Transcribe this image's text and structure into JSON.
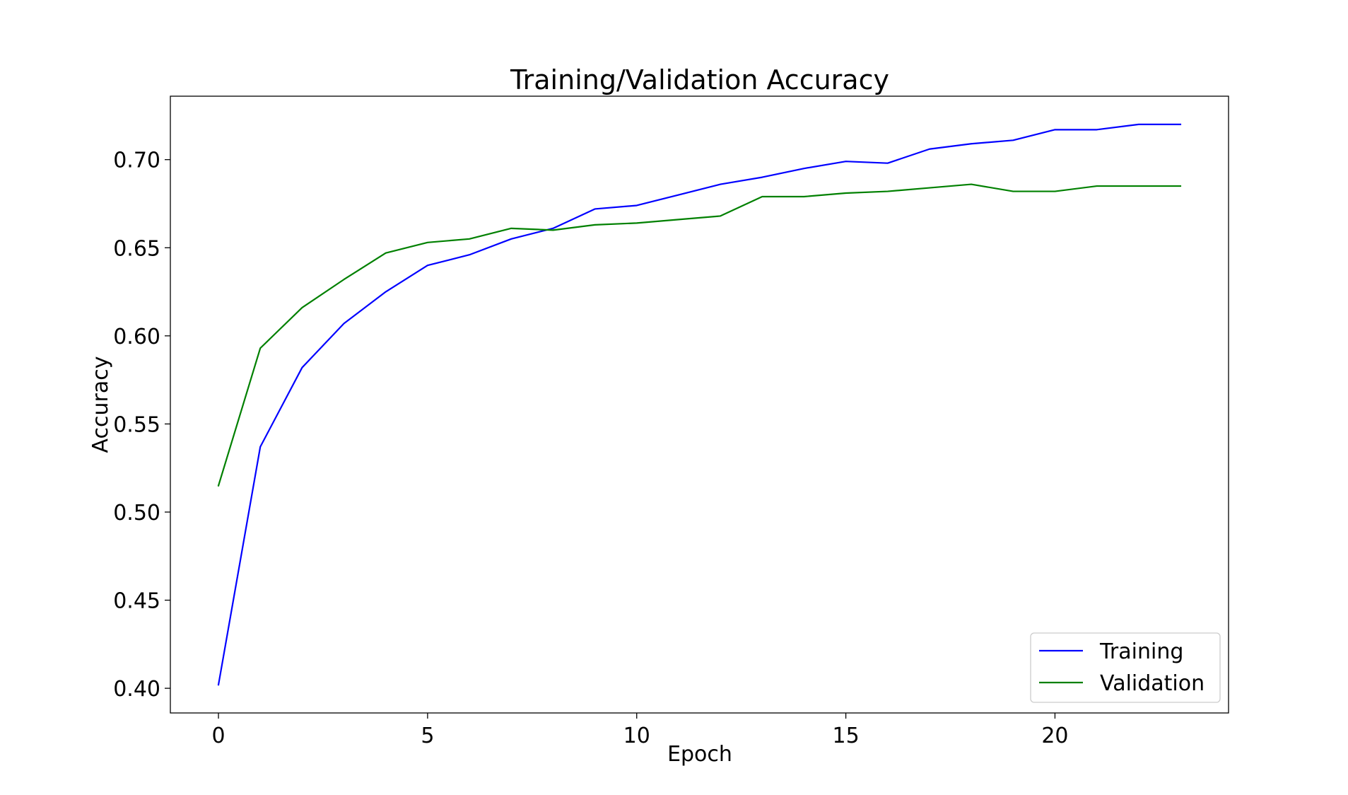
{
  "chart_data": {
    "type": "line",
    "title": "Training/Validation Accuracy",
    "xlabel": "Epoch",
    "ylabel": "Accuracy",
    "xlim": [
      -1.15,
      24.15
    ],
    "ylim": [
      0.386,
      0.736
    ],
    "xticks": [
      0,
      5,
      10,
      15,
      20
    ],
    "xtick_labels": [
      "0",
      "5",
      "10",
      "15",
      "20"
    ],
    "yticks": [
      0.4,
      0.45,
      0.5,
      0.55,
      0.6,
      0.65,
      0.7
    ],
    "ytick_labels": [
      "0.40",
      "0.45",
      "0.50",
      "0.55",
      "0.60",
      "0.65",
      "0.70"
    ],
    "grid": false,
    "legend_position": "bottom-right",
    "x": [
      0,
      1,
      2,
      3,
      4,
      5,
      6,
      7,
      8,
      9,
      10,
      11,
      12,
      13,
      14,
      15,
      16,
      17,
      18,
      19,
      20,
      21,
      22,
      23
    ],
    "series": [
      {
        "name": "Training",
        "color": "#0000ff",
        "values": [
          0.402,
          0.537,
          0.582,
          0.607,
          0.625,
          0.64,
          0.646,
          0.655,
          0.661,
          0.672,
          0.674,
          0.68,
          0.686,
          0.69,
          0.695,
          0.699,
          0.698,
          0.706,
          0.709,
          0.711,
          0.717,
          0.717,
          0.72,
          0.72
        ]
      },
      {
        "name": "Validation",
        "color": "#008000",
        "values": [
          0.515,
          0.593,
          0.616,
          0.632,
          0.647,
          0.653,
          0.655,
          0.661,
          0.66,
          0.663,
          0.664,
          0.666,
          0.668,
          0.679,
          0.679,
          0.681,
          0.682,
          0.684,
          0.686,
          0.682,
          0.682,
          0.685,
          0.685,
          0.685
        ]
      }
    ]
  }
}
